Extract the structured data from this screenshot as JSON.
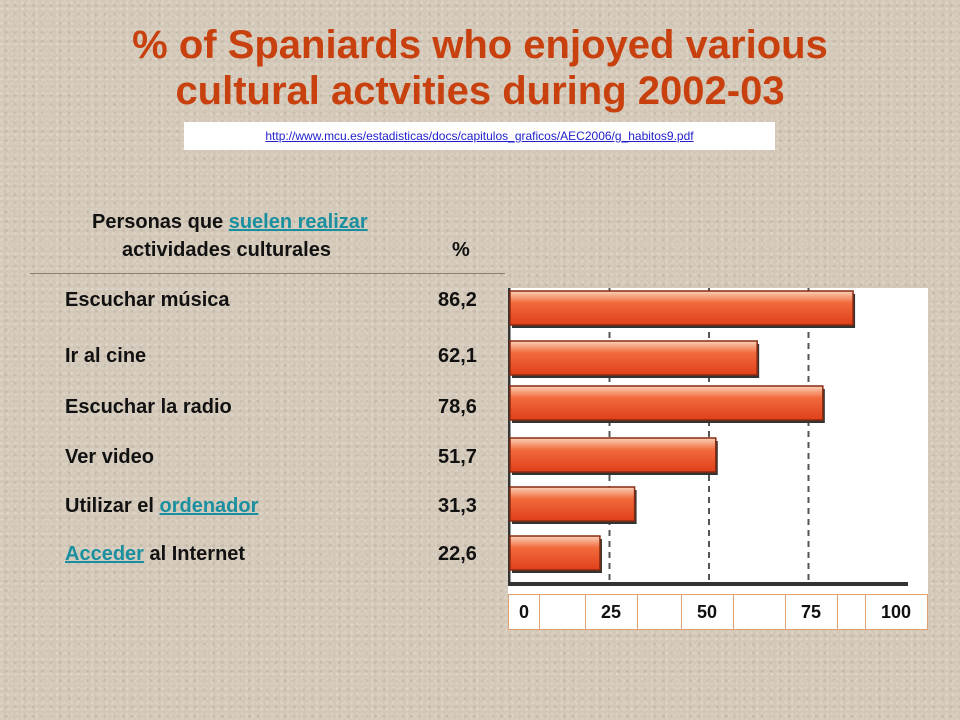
{
  "title": "% of Spaniards who enjoyed various cultural actvities during 2002-03",
  "source_url": "http://www.mcu.es/estadisticas/docs/capitulos_graficos/AEC2006/g_habitos9.pdf",
  "table": {
    "header_prefix": "Personas que ",
    "header_link": "suelen realizar",
    "header_line2": "actividades culturales",
    "header_pct": "%",
    "rows": [
      {
        "label": "Escuchar música",
        "value": "86,2"
      },
      {
        "label": "Ir al cine",
        "value": "62,1"
      },
      {
        "label": "Escuchar la radio",
        "value": "78,6"
      },
      {
        "label": "Ver video",
        "value": "51,7"
      },
      {
        "label_prefix": "Utilizar el ",
        "label_link": "ordenador",
        "value": "31,3"
      },
      {
        "label_link": "Acceder",
        "label_suffix": " al Internet",
        "value": "22,6"
      }
    ]
  },
  "chart_data": {
    "type": "bar",
    "orientation": "horizontal",
    "categories": [
      "Escuchar música",
      "Ir al cine",
      "Escuchar la radio",
      "Ver video",
      "Utilizar el ordenador",
      "Acceder al Internet"
    ],
    "values": [
      86.2,
      62.1,
      78.6,
      51.7,
      31.3,
      22.6
    ],
    "xlim": [
      0,
      100
    ],
    "xticks": [
      "0",
      "25",
      "50",
      "75",
      "100"
    ],
    "grid": true,
    "bar_color": "#ee4f22"
  }
}
